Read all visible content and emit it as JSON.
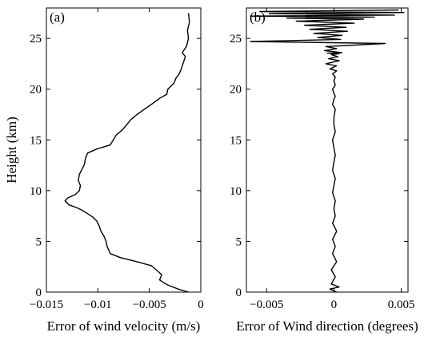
{
  "chart_data": [
    {
      "type": "line",
      "panel_label": "(a)",
      "xlabel": "Error of wind velocity (m/s)",
      "ylabel": "Height (km)",
      "xlim": [
        -0.015,
        0
      ],
      "ylim": [
        0,
        28
      ],
      "xticks": [
        -0.015,
        -0.01,
        -0.005,
        0
      ],
      "xtick_labels": [
        "−0.015",
        "−0.01",
        "−0.005",
        "0"
      ],
      "yticks": [
        0,
        5,
        10,
        15,
        20,
        25
      ],
      "ytick_labels": [
        "0",
        "5",
        "10",
        "15",
        "20",
        "25"
      ],
      "grid": false,
      "series": [
        {
          "x": [
            -0.0012,
            -0.0022,
            -0.0032,
            -0.0037,
            -0.004,
            -0.0038,
            -0.0041,
            -0.0048,
            -0.0062,
            -0.0078,
            -0.0088,
            -0.0091,
            -0.0092,
            -0.0094,
            -0.0097,
            -0.0099,
            -0.0101,
            -0.0105,
            -0.0111,
            -0.0116,
            -0.012,
            -0.0128,
            -0.0132,
            -0.0129,
            -0.0122,
            -0.0118,
            -0.0117,
            -0.0119,
            -0.0118,
            -0.0115,
            -0.0113,
            -0.0112,
            -0.011,
            -0.0101,
            -0.0088,
            -0.0085,
            -0.0082,
            -0.0076,
            -0.0072,
            -0.0068,
            -0.0062,
            -0.0055,
            -0.0048,
            -0.004,
            -0.0033,
            -0.0032,
            -0.0026,
            -0.0024,
            -0.0021,
            -0.0019,
            -0.0017,
            -0.0015,
            -0.0018,
            -0.0014,
            -0.0012,
            -0.0013,
            -0.0011,
            -0.0012
          ],
          "y": [
            0,
            0.3,
            0.7,
            1.0,
            1.2,
            1.7,
            2.0,
            2.6,
            3.0,
            3.4,
            3.8,
            4.5,
            5.0,
            5.5,
            6.0,
            6.6,
            7.0,
            7.4,
            7.8,
            8.1,
            8.3,
            8.6,
            9.0,
            9.3,
            9.6,
            10.0,
            10.5,
            11.0,
            11.6,
            12.2,
            12.6,
            13.2,
            13.7,
            14.1,
            14.5,
            15.0,
            15.5,
            16.0,
            16.5,
            17.0,
            17.5,
            18.0,
            18.5,
            19.1,
            19.5,
            20.0,
            20.6,
            21.1,
            21.5,
            22.0,
            22.6,
            23.2,
            23.6,
            24.2,
            25.0,
            25.8,
            26.6,
            27.5
          ]
        }
      ]
    },
    {
      "type": "line",
      "panel_label": "(b)",
      "xlabel": "Error of Wind direction (degrees)",
      "ylabel": "",
      "xlim": [
        -0.0065,
        0.0055
      ],
      "ylim": [
        0,
        28
      ],
      "xticks": [
        -0.005,
        0,
        0.005
      ],
      "xtick_labels": [
        "−0.005",
        "0",
        "0.005"
      ],
      "yticks": [
        0,
        5,
        10,
        15,
        20,
        25
      ],
      "ytick_labels": [
        "0",
        "5",
        "10",
        "15",
        "20",
        "25"
      ],
      "grid": false,
      "series": [
        {
          "x": [
            0.0002,
            -0.0003,
            0.0004,
            -0.0002,
            0.0001,
            -0.0002,
            0.0002,
            -0.0001,
            0.0001,
            -0.0001,
            0.0002,
            -0.0001,
            0.0001,
            0.0,
            0.0001,
            -0.0001,
            0.0,
            0.0001,
            -0.0001,
            0.0,
            0.0001,
            0.0,
            -0.0001,
            0.0001,
            0.0,
            0.0,
            0.0001,
            -0.0001,
            0.0,
            0.0001,
            0.0,
            -0.0001,
            0.0001,
            0.0,
            0.0001,
            -0.0001,
            0.0002,
            -0.0003,
            0.0002,
            -0.0006,
            0.0004,
            -0.0004,
            0.0003,
            -0.0002,
            0.0004,
            -0.0005,
            0.0006,
            -0.0007,
            0.0002,
            -0.0006,
            0.0038,
            -0.0062,
            0.0005,
            -0.0012,
            0.0006,
            -0.0015,
            0.001,
            -0.0018,
            0.0009,
            -0.0022,
            0.0015,
            -0.0028,
            0.0022,
            -0.0035,
            0.003,
            -0.0062,
            0.0045,
            -0.0048,
            0.0052,
            -0.0055,
            0.0048
          ],
          "y": [
            0.0,
            0.3,
            0.5,
            0.8,
            1.5,
            2.2,
            3.0,
            3.8,
            4.5,
            5.2,
            6.0,
            6.8,
            7.5,
            8.2,
            9.0,
            9.8,
            10.5,
            11.2,
            12.0,
            12.8,
            13.5,
            14.2,
            15.0,
            15.8,
            16.5,
            17.2,
            18.0,
            18.5,
            19.0,
            19.3,
            19.6,
            20.0,
            20.4,
            20.8,
            21.2,
            21.5,
            21.8,
            22.0,
            22.3,
            22.5,
            22.8,
            23.0,
            23.2,
            23.4,
            23.5,
            23.55,
            23.6,
            23.8,
            24.0,
            24.2,
            24.5,
            24.7,
            24.9,
            25.1,
            25.3,
            25.5,
            25.7,
            25.9,
            26.1,
            26.3,
            26.5,
            26.7,
            26.9,
            27.0,
            27.1,
            27.2,
            27.3,
            27.45,
            27.55,
            27.65,
            27.8
          ]
        }
      ]
    }
  ]
}
